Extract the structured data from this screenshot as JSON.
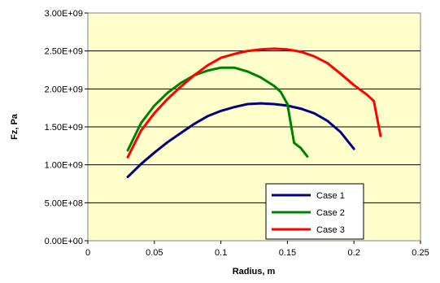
{
  "chart_data": {
    "type": "line",
    "title": "",
    "xlabel": "Radius, m",
    "ylabel": "Fz, Pa",
    "xlim": [
      0,
      0.25
    ],
    "ylim": [
      0,
      3000000000
    ],
    "x_ticks": [
      0,
      0.05,
      0.1,
      0.15,
      0.2,
      0.25
    ],
    "x_tick_labels": [
      "0",
      "0.05",
      "0.1",
      "0.15",
      "0.2",
      "0.25"
    ],
    "y_ticks": [
      0,
      500000000,
      1000000000,
      1500000000,
      2000000000,
      2500000000,
      3000000000
    ],
    "y_tick_labels": [
      "0.00E+00",
      "5.00E+08",
      "1.00E+09",
      "1.50E+09",
      "2.00E+09",
      "2.50E+09",
      "3.00E+09"
    ],
    "grid": "horizontal",
    "legend_position": "bottom-right",
    "plot_background": "#ffffcc",
    "series": [
      {
        "name": "Case 1",
        "color": "#000080",
        "points": [
          [
            0.03,
            840000000
          ],
          [
            0.04,
            1010000000
          ],
          [
            0.05,
            1160000000
          ],
          [
            0.06,
            1300000000
          ],
          [
            0.07,
            1420000000
          ],
          [
            0.08,
            1540000000
          ],
          [
            0.09,
            1640000000
          ],
          [
            0.1,
            1710000000
          ],
          [
            0.11,
            1760000000
          ],
          [
            0.12,
            1800000000
          ],
          [
            0.13,
            1810000000
          ],
          [
            0.14,
            1800000000
          ],
          [
            0.15,
            1780000000
          ],
          [
            0.16,
            1740000000
          ],
          [
            0.17,
            1680000000
          ],
          [
            0.18,
            1580000000
          ],
          [
            0.19,
            1430000000
          ],
          [
            0.2,
            1210000000
          ]
        ]
      },
      {
        "name": "Case 2",
        "color": "#008000",
        "points": [
          [
            0.03,
            1190000000
          ],
          [
            0.04,
            1550000000
          ],
          [
            0.05,
            1780000000
          ],
          [
            0.06,
            1950000000
          ],
          [
            0.07,
            2080000000
          ],
          [
            0.08,
            2180000000
          ],
          [
            0.09,
            2240000000
          ],
          [
            0.1,
            2280000000
          ],
          [
            0.11,
            2280000000
          ],
          [
            0.12,
            2230000000
          ],
          [
            0.13,
            2150000000
          ],
          [
            0.14,
            2040000000
          ],
          [
            0.145,
            1960000000
          ],
          [
            0.15,
            1800000000
          ],
          [
            0.155,
            1290000000
          ],
          [
            0.16,
            1220000000
          ],
          [
            0.165,
            1110000000
          ]
        ]
      },
      {
        "name": "Case 3",
        "color": "#ff0000",
        "points": [
          [
            0.03,
            1100000000
          ],
          [
            0.04,
            1450000000
          ],
          [
            0.05,
            1680000000
          ],
          [
            0.06,
            1870000000
          ],
          [
            0.07,
            2030000000
          ],
          [
            0.08,
            2180000000
          ],
          [
            0.09,
            2310000000
          ],
          [
            0.1,
            2410000000
          ],
          [
            0.11,
            2460000000
          ],
          [
            0.12,
            2500000000
          ],
          [
            0.13,
            2520000000
          ],
          [
            0.14,
            2530000000
          ],
          [
            0.15,
            2520000000
          ],
          [
            0.16,
            2490000000
          ],
          [
            0.17,
            2430000000
          ],
          [
            0.18,
            2340000000
          ],
          [
            0.19,
            2200000000
          ],
          [
            0.2,
            2050000000
          ],
          [
            0.21,
            1920000000
          ],
          [
            0.215,
            1840000000
          ],
          [
            0.22,
            1380000000
          ]
        ]
      }
    ]
  }
}
